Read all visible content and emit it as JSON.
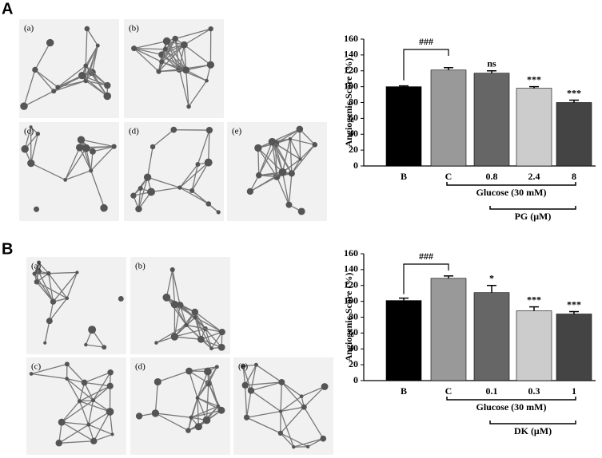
{
  "panels": [
    {
      "label": "A",
      "images": [
        "(a)",
        "(b)",
        "(c)",
        "(d)",
        "(e)"
      ]
    },
    {
      "label": "B",
      "images": [
        "(a)",
        "(b)",
        "(c)",
        "(d)",
        "(e)"
      ]
    }
  ],
  "chart_data": [
    {
      "type": "bar",
      "y_label": "Angiogenic Score (%)",
      "categories": [
        "B",
        "C",
        "0.8",
        "2.4",
        "8"
      ],
      "values": [
        100,
        121,
        117,
        98,
        80
      ],
      "errors": [
        1,
        3,
        3,
        2,
        3
      ],
      "annotations": [
        null,
        null,
        "ns",
        "***",
        "***"
      ],
      "bracket_label": "###",
      "colors": [
        "#000000",
        "#999999",
        "#666666",
        "#cccccc",
        "#444444"
      ],
      "groups": [
        {
          "label": "Glucose (30 mM)"
        },
        {
          "label": "PG (μM)"
        }
      ],
      "ylim": [
        0,
        160
      ],
      "yticks": [
        0,
        20,
        40,
        60,
        80,
        100,
        120,
        140,
        160
      ]
    },
    {
      "type": "bar",
      "y_label": "Angiogenic Score (%)",
      "categories": [
        "B",
        "C",
        "0.1",
        "0.3",
        "1"
      ],
      "values": [
        101,
        129,
        111,
        88,
        84
      ],
      "errors": [
        3,
        3,
        9,
        5,
        3
      ],
      "annotations": [
        null,
        null,
        "*",
        "***",
        "***"
      ],
      "bracket_label": "###",
      "colors": [
        "#000000",
        "#999999",
        "#666666",
        "#cccccc",
        "#444444"
      ],
      "groups": [
        {
          "label": "Glucose (30 mM)"
        },
        {
          "label": "DK (μM)"
        }
      ],
      "ylim": [
        0,
        160
      ],
      "yticks": [
        0,
        20,
        40,
        60,
        80,
        100,
        120,
        140,
        160
      ]
    }
  ]
}
